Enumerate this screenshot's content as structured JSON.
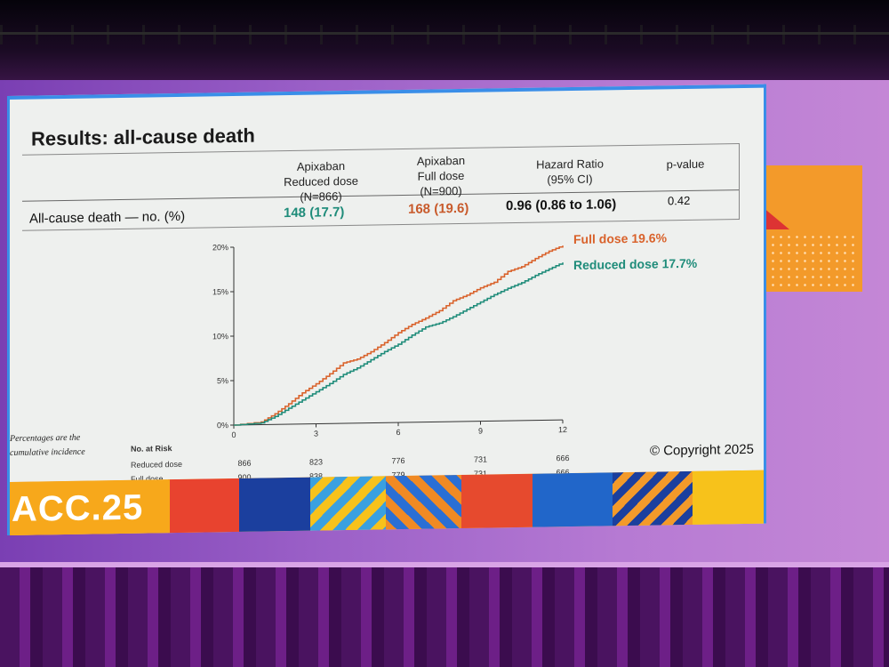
{
  "slide": {
    "title": "Results: all-cause death",
    "columns": [
      {
        "id": "reduced",
        "lines": [
          "Apixaban",
          "Reduced dose",
          "(N=866)"
        ]
      },
      {
        "id": "full",
        "lines": [
          "Apixaban",
          "Full dose",
          "(N=900)"
        ]
      },
      {
        "id": "hr",
        "lines": [
          "Hazard Ratio",
          "(95% CI)"
        ]
      },
      {
        "id": "p",
        "lines": [
          "p-value"
        ]
      }
    ],
    "row": {
      "label": "All-cause death — no. (%)",
      "reduced": "148 (17.7)",
      "full": "168 (19.6)",
      "hr": "0.96 (0.86 to 1.06)",
      "p": "0.42"
    },
    "note_line1": "Percentages are the",
    "note_line2": "cumulative incidence",
    "copyright": "© Copyright 2025",
    "conference": "ACC.25"
  },
  "colors": {
    "full_dose": "#d9622b",
    "reduced_dose": "#1f8c7a",
    "slide_border": "#3a8ee8"
  },
  "chart_data": {
    "type": "line",
    "y_ticks": [
      "0%",
      "5%",
      "10%",
      "15%",
      "20%"
    ],
    "x_ticks": [
      "0",
      "3",
      "6",
      "9",
      "12"
    ],
    "xlim": [
      0,
      12
    ],
    "ylim": [
      0,
      20
    ],
    "series": [
      {
        "name": "Full dose 19.6%",
        "color": "#d9622b",
        "x": [
          0,
          1,
          1.5,
          2,
          2.5,
          3,
          3.5,
          4,
          4.5,
          5,
          5.5,
          6,
          6.5,
          7,
          7.5,
          8,
          8.5,
          9,
          9.5,
          10,
          10.5,
          11,
          11.5,
          12
        ],
        "y": [
          0,
          0.3,
          1.2,
          2.3,
          3.5,
          4.5,
          5.6,
          6.8,
          7.2,
          8.0,
          9.0,
          10.1,
          11.0,
          11.7,
          12.5,
          13.6,
          14.2,
          15.0,
          15.6,
          16.8,
          17.3,
          18.2,
          19.0,
          19.6
        ]
      },
      {
        "name": "Reduced dose 17.7%",
        "color": "#1f8c7a",
        "x": [
          0,
          1,
          1.5,
          2,
          2.5,
          3,
          3.5,
          4,
          4.5,
          5,
          5.5,
          6,
          6.5,
          7,
          7.5,
          8,
          8.5,
          9,
          9.5,
          10,
          10.5,
          11,
          11.5,
          12
        ],
        "y": [
          0,
          0.2,
          0.9,
          1.8,
          2.7,
          3.6,
          4.5,
          5.5,
          6.2,
          7.1,
          8.0,
          8.8,
          9.8,
          10.7,
          11.1,
          11.8,
          12.6,
          13.4,
          14.2,
          14.9,
          15.5,
          16.3,
          17.0,
          17.7
        ]
      }
    ],
    "at_risk": {
      "header": "No. at Risk",
      "rows": [
        {
          "label": "Reduced dose",
          "values": [
            "866",
            "823",
            "776",
            "731",
            "666"
          ]
        },
        {
          "label": "Full dose",
          "values": [
            "900",
            "838",
            "779",
            "731",
            "666"
          ]
        }
      ]
    }
  }
}
